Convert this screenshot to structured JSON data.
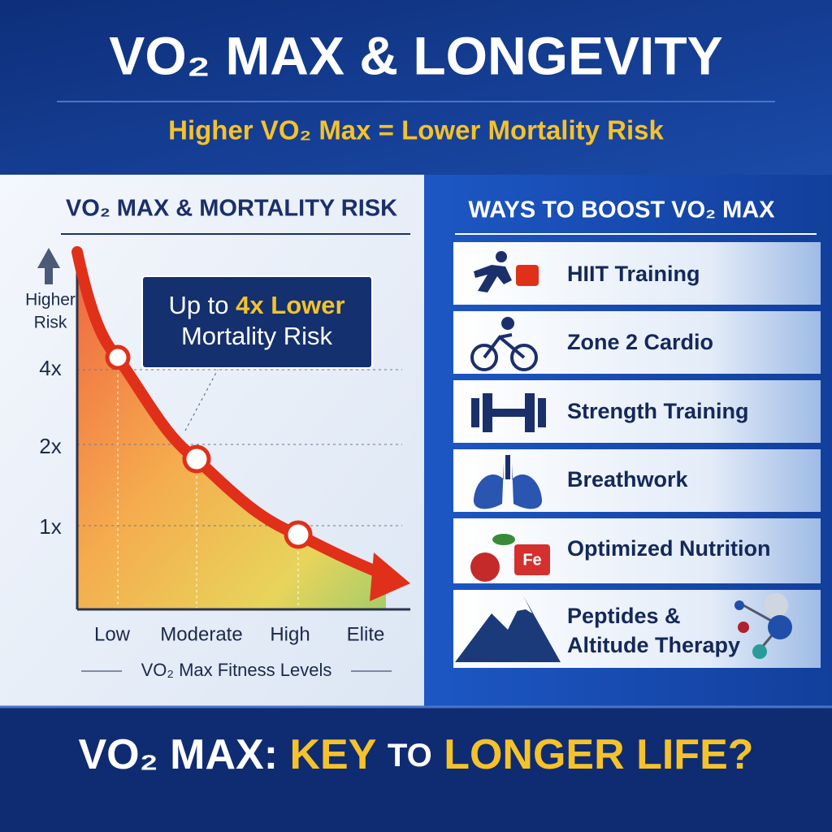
{
  "header": {
    "title": "VO₂ MAX & LONGEVITY",
    "subtitle": "Higher VO₂ Max = Lower Mortality Risk"
  },
  "chart_panel": {
    "title": "VO₂ MAX & MORTALITY RISK",
    "y_label_lines": [
      "Higher",
      "Risk"
    ],
    "y_ticks": [
      "4x",
      "2x",
      "1x"
    ],
    "callout": {
      "prefix": "Up to",
      "highlight": "4x Lower",
      "suffix": "Mortality Risk"
    },
    "categories": [
      "Low",
      "Moderate",
      "High",
      "Elite"
    ],
    "x_title": "VO₂ Max Fitness Levels"
  },
  "ways_panel": {
    "title": "WAYS TO BOOST VO₂ MAX",
    "items": [
      {
        "label": "HIIT Training"
      },
      {
        "label": "Zone 2 Cardio"
      },
      {
        "label": "Strength Training"
      },
      {
        "label": "Breathwork"
      },
      {
        "label": "Optimized Nutrition",
        "icon_text": "Fe"
      },
      {
        "lines": [
          "Peptides &",
          "Altitude Therapy"
        ]
      }
    ]
  },
  "footer": {
    "part1": "VO₂ MAX:",
    "part2": "KEY",
    "part3": "TO",
    "part4": "LONGER LIFE?"
  }
}
